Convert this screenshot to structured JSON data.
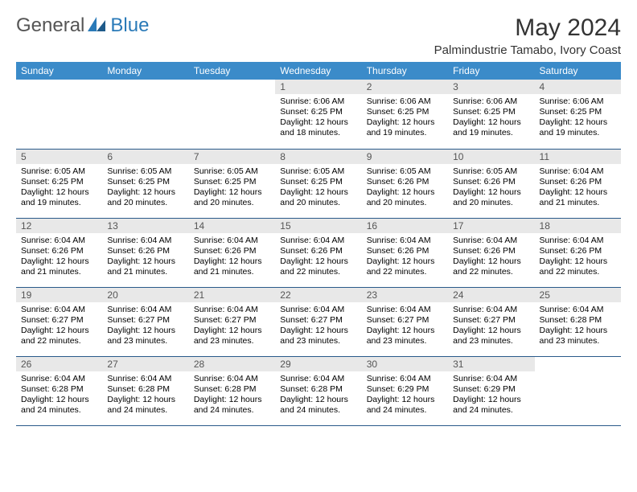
{
  "logo": {
    "text1": "General",
    "text2": "Blue"
  },
  "title": "May 2024",
  "location": "Palmindustrie Tamabo, Ivory Coast",
  "colors": {
    "header_bg": "#3b8bc9",
    "header_text": "#ffffff",
    "cell_border": "#2a5a8a",
    "daynum_bg": "#e8e8e8",
    "logo_gray": "#555555",
    "logo_blue": "#2a7ab8"
  },
  "day_headers": [
    "Sunday",
    "Monday",
    "Tuesday",
    "Wednesday",
    "Thursday",
    "Friday",
    "Saturday"
  ],
  "weeks": [
    [
      {
        "day": "",
        "lines": []
      },
      {
        "day": "",
        "lines": []
      },
      {
        "day": "",
        "lines": []
      },
      {
        "day": "1",
        "lines": [
          "Sunrise: 6:06 AM",
          "Sunset: 6:25 PM",
          "Daylight: 12 hours and 18 minutes."
        ]
      },
      {
        "day": "2",
        "lines": [
          "Sunrise: 6:06 AM",
          "Sunset: 6:25 PM",
          "Daylight: 12 hours and 19 minutes."
        ]
      },
      {
        "day": "3",
        "lines": [
          "Sunrise: 6:06 AM",
          "Sunset: 6:25 PM",
          "Daylight: 12 hours and 19 minutes."
        ]
      },
      {
        "day": "4",
        "lines": [
          "Sunrise: 6:06 AM",
          "Sunset: 6:25 PM",
          "Daylight: 12 hours and 19 minutes."
        ]
      }
    ],
    [
      {
        "day": "5",
        "lines": [
          "Sunrise: 6:05 AM",
          "Sunset: 6:25 PM",
          "Daylight: 12 hours and 19 minutes."
        ]
      },
      {
        "day": "6",
        "lines": [
          "Sunrise: 6:05 AM",
          "Sunset: 6:25 PM",
          "Daylight: 12 hours and 20 minutes."
        ]
      },
      {
        "day": "7",
        "lines": [
          "Sunrise: 6:05 AM",
          "Sunset: 6:25 PM",
          "Daylight: 12 hours and 20 minutes."
        ]
      },
      {
        "day": "8",
        "lines": [
          "Sunrise: 6:05 AM",
          "Sunset: 6:25 PM",
          "Daylight: 12 hours and 20 minutes."
        ]
      },
      {
        "day": "9",
        "lines": [
          "Sunrise: 6:05 AM",
          "Sunset: 6:26 PM",
          "Daylight: 12 hours and 20 minutes."
        ]
      },
      {
        "day": "10",
        "lines": [
          "Sunrise: 6:05 AM",
          "Sunset: 6:26 PM",
          "Daylight: 12 hours and 20 minutes."
        ]
      },
      {
        "day": "11",
        "lines": [
          "Sunrise: 6:04 AM",
          "Sunset: 6:26 PM",
          "Daylight: 12 hours and 21 minutes."
        ]
      }
    ],
    [
      {
        "day": "12",
        "lines": [
          "Sunrise: 6:04 AM",
          "Sunset: 6:26 PM",
          "Daylight: 12 hours and 21 minutes."
        ]
      },
      {
        "day": "13",
        "lines": [
          "Sunrise: 6:04 AM",
          "Sunset: 6:26 PM",
          "Daylight: 12 hours and 21 minutes."
        ]
      },
      {
        "day": "14",
        "lines": [
          "Sunrise: 6:04 AM",
          "Sunset: 6:26 PM",
          "Daylight: 12 hours and 21 minutes."
        ]
      },
      {
        "day": "15",
        "lines": [
          "Sunrise: 6:04 AM",
          "Sunset: 6:26 PM",
          "Daylight: 12 hours and 22 minutes."
        ]
      },
      {
        "day": "16",
        "lines": [
          "Sunrise: 6:04 AM",
          "Sunset: 6:26 PM",
          "Daylight: 12 hours and 22 minutes."
        ]
      },
      {
        "day": "17",
        "lines": [
          "Sunrise: 6:04 AM",
          "Sunset: 6:26 PM",
          "Daylight: 12 hours and 22 minutes."
        ]
      },
      {
        "day": "18",
        "lines": [
          "Sunrise: 6:04 AM",
          "Sunset: 6:26 PM",
          "Daylight: 12 hours and 22 minutes."
        ]
      }
    ],
    [
      {
        "day": "19",
        "lines": [
          "Sunrise: 6:04 AM",
          "Sunset: 6:27 PM",
          "Daylight: 12 hours and 22 minutes."
        ]
      },
      {
        "day": "20",
        "lines": [
          "Sunrise: 6:04 AM",
          "Sunset: 6:27 PM",
          "Daylight: 12 hours and 23 minutes."
        ]
      },
      {
        "day": "21",
        "lines": [
          "Sunrise: 6:04 AM",
          "Sunset: 6:27 PM",
          "Daylight: 12 hours and 23 minutes."
        ]
      },
      {
        "day": "22",
        "lines": [
          "Sunrise: 6:04 AM",
          "Sunset: 6:27 PM",
          "Daylight: 12 hours and 23 minutes."
        ]
      },
      {
        "day": "23",
        "lines": [
          "Sunrise: 6:04 AM",
          "Sunset: 6:27 PM",
          "Daylight: 12 hours and 23 minutes."
        ]
      },
      {
        "day": "24",
        "lines": [
          "Sunrise: 6:04 AM",
          "Sunset: 6:27 PM",
          "Daylight: 12 hours and 23 minutes."
        ]
      },
      {
        "day": "25",
        "lines": [
          "Sunrise: 6:04 AM",
          "Sunset: 6:28 PM",
          "Daylight: 12 hours and 23 minutes."
        ]
      }
    ],
    [
      {
        "day": "26",
        "lines": [
          "Sunrise: 6:04 AM",
          "Sunset: 6:28 PM",
          "Daylight: 12 hours and 24 minutes."
        ]
      },
      {
        "day": "27",
        "lines": [
          "Sunrise: 6:04 AM",
          "Sunset: 6:28 PM",
          "Daylight: 12 hours and 24 minutes."
        ]
      },
      {
        "day": "28",
        "lines": [
          "Sunrise: 6:04 AM",
          "Sunset: 6:28 PM",
          "Daylight: 12 hours and 24 minutes."
        ]
      },
      {
        "day": "29",
        "lines": [
          "Sunrise: 6:04 AM",
          "Sunset: 6:28 PM",
          "Daylight: 12 hours and 24 minutes."
        ]
      },
      {
        "day": "30",
        "lines": [
          "Sunrise: 6:04 AM",
          "Sunset: 6:29 PM",
          "Daylight: 12 hours and 24 minutes."
        ]
      },
      {
        "day": "31",
        "lines": [
          "Sunrise: 6:04 AM",
          "Sunset: 6:29 PM",
          "Daylight: 12 hours and 24 minutes."
        ]
      },
      {
        "day": "",
        "lines": []
      }
    ]
  ]
}
